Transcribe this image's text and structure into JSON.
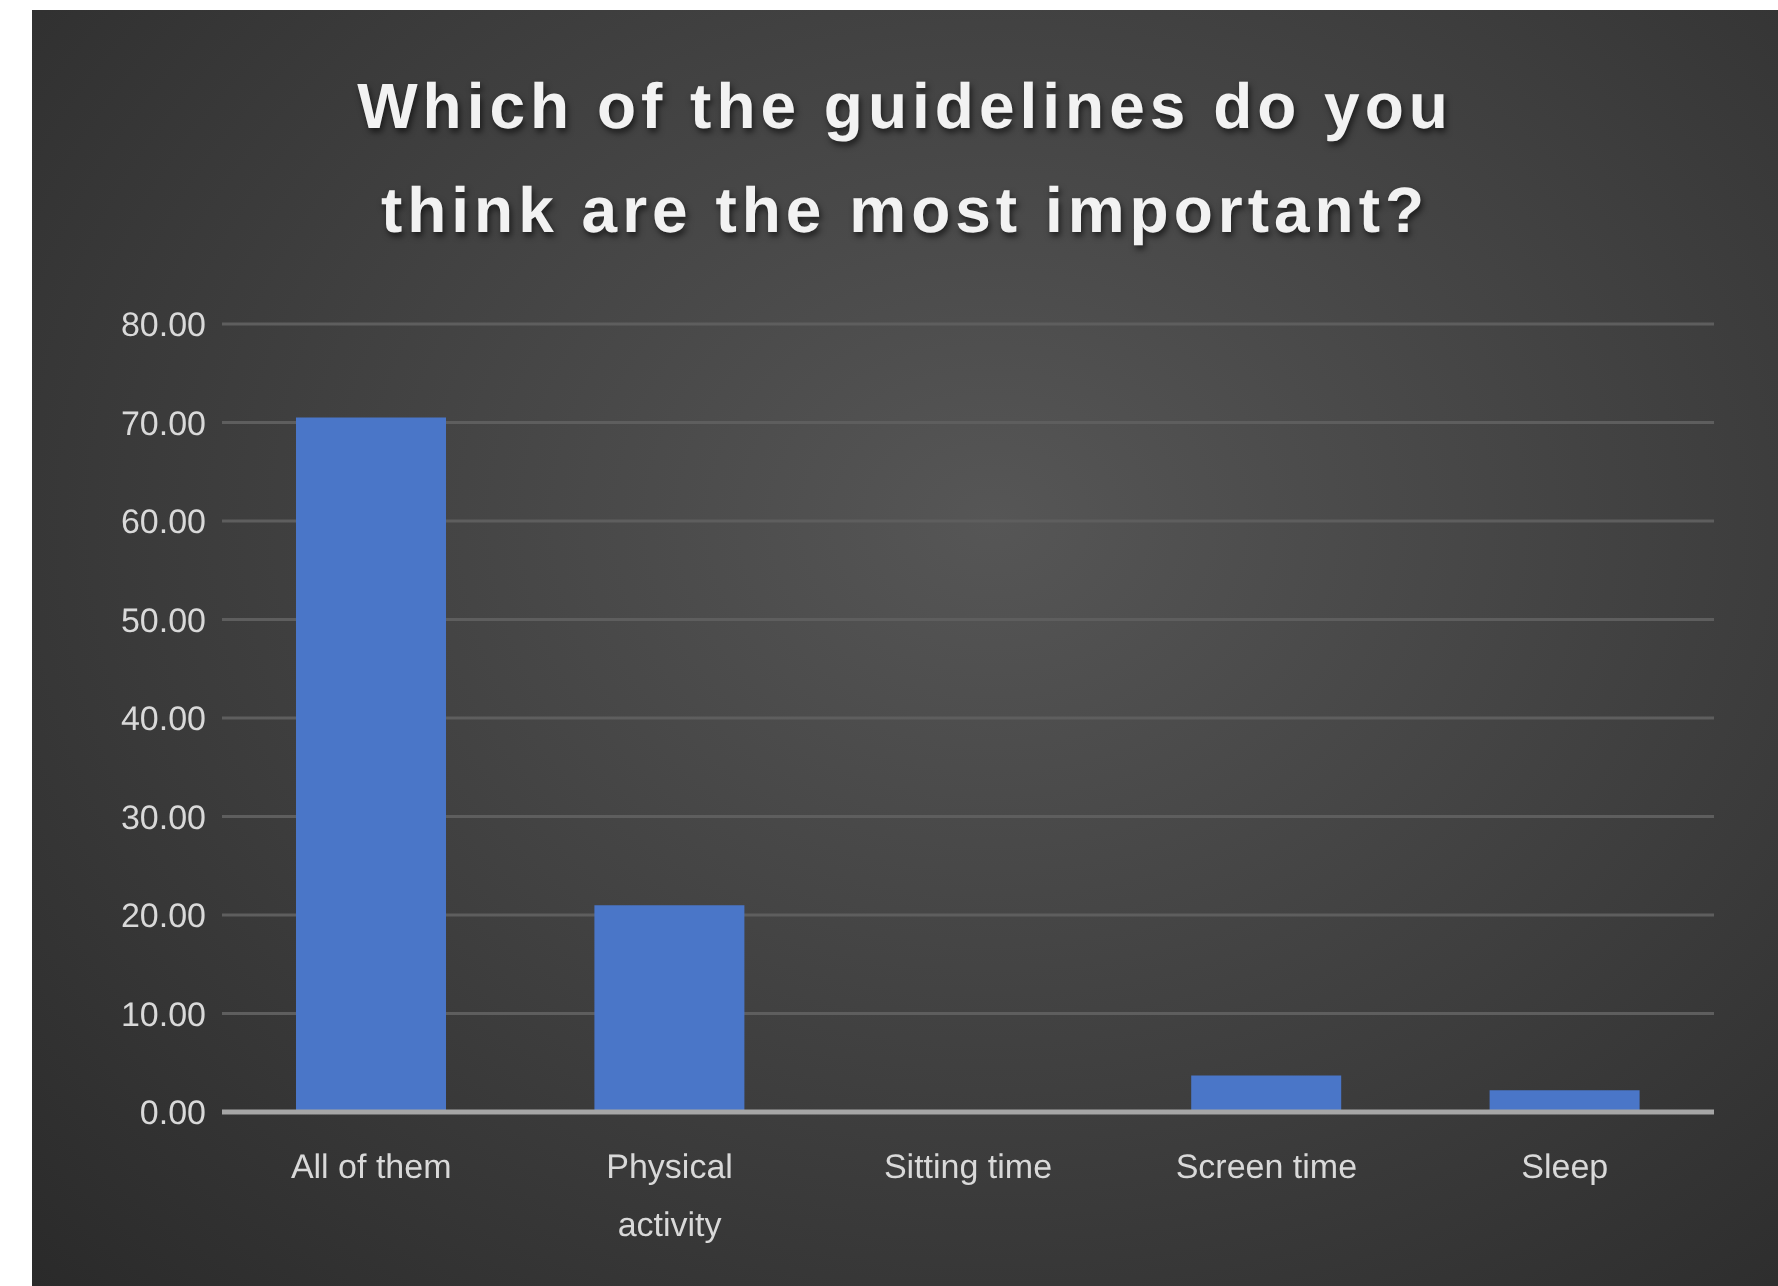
{
  "chart_data": {
    "type": "bar",
    "title": "Which of the guidelines do you think are the most important?",
    "categories": [
      "All of them",
      "Physical activity",
      "Sitting time",
      "Screen time",
      "Sleep"
    ],
    "values": [
      70.5,
      21.0,
      0,
      3.7,
      2.2
    ],
    "color": "#4a76c8",
    "ylim": [
      0,
      80
    ],
    "yticks": [
      {
        "value": 0,
        "label": "0.00"
      },
      {
        "value": 10,
        "label": "10.00"
      },
      {
        "value": 20,
        "label": "20.00"
      },
      {
        "value": 30,
        "label": "30.00"
      },
      {
        "value": 40,
        "label": "40.00"
      },
      {
        "value": 50,
        "label": "50.00"
      },
      {
        "value": 60,
        "label": "60.00"
      },
      {
        "value": 70,
        "label": "70.00"
      },
      {
        "value": 80,
        "label": "80.00"
      }
    ],
    "grid": "y"
  }
}
